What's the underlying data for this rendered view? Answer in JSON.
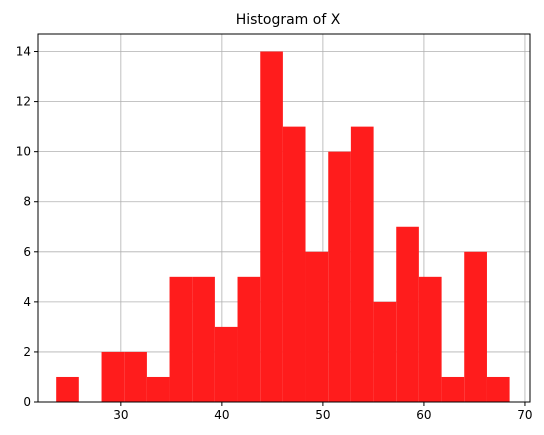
{
  "chart_data": {
    "type": "bar",
    "title": "Histogram of X",
    "xlabel": "",
    "ylabel": "",
    "bar_color": "#ff1c1c",
    "grid": true,
    "xlim": [
      21.8,
      70.5
    ],
    "ylim": [
      0,
      14.7
    ],
    "xticks": [
      30,
      40,
      50,
      60,
      70
    ],
    "yticks": [
      0,
      2,
      4,
      6,
      8,
      10,
      12,
      14
    ],
    "bin_edges": [
      23.6,
      25.84,
      28.09,
      30.33,
      32.58,
      34.82,
      37.06,
      39.31,
      41.55,
      43.8,
      46.04,
      48.28,
      50.53,
      52.77,
      55.02,
      57.26,
      59.5,
      61.75,
      63.99,
      66.24,
      68.48
    ],
    "values": [
      1,
      0,
      2,
      2,
      1,
      5,
      5,
      3,
      5,
      14,
      11,
      6,
      10,
      11,
      4,
      7,
      5,
      1,
      6,
      1
    ]
  }
}
